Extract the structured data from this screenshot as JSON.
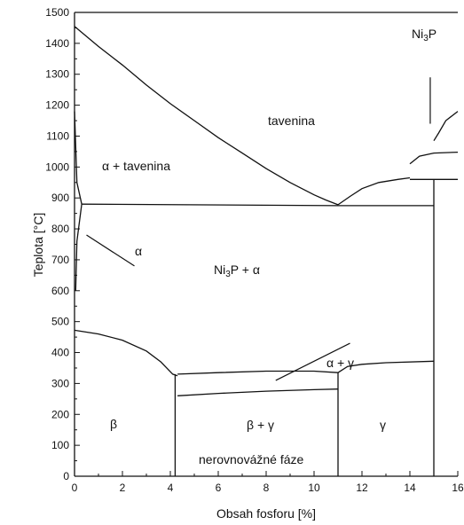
{
  "chart_data": {
    "type": "phase-diagram",
    "xlabel": "Obsah fosforu [%]",
    "ylabel": "Teplota [°C]",
    "xlim": [
      0,
      16
    ],
    "ylim": [
      0,
      1500
    ],
    "x_ticks": [
      "0",
      "2",
      "4",
      "6",
      "8",
      "10",
      "12",
      "14",
      "16"
    ],
    "y_ticks": [
      "0",
      "100",
      "200",
      "300",
      "400",
      "500",
      "600",
      "700",
      "800",
      "900",
      "1000",
      "1100",
      "1200",
      "1300",
      "1400",
      "1500"
    ],
    "regions": {
      "melt": "tavenina",
      "alpha_melt": "α + tavenina",
      "alpha": "α",
      "ni3p_alpha_pre": "Ni",
      "ni3p_alpha_sub": "3",
      "ni3p_alpha_post": "P + α",
      "alpha_gamma": "α + γ",
      "beta": "β",
      "beta_gamma": "β + γ",
      "gamma": "γ",
      "nonequilibrium": "nerovnovážné fáze",
      "ni3p_pre": "Ni",
      "ni3p_sub": "3",
      "ni3p_post": "P"
    },
    "curves": {
      "liquidus_left": [
        [
          0,
          1455
        ],
        [
          1,
          1390
        ],
        [
          2,
          1330
        ],
        [
          3,
          1265
        ],
        [
          4,
          1205
        ],
        [
          5,
          1150
        ],
        [
          6,
          1095
        ],
        [
          7,
          1045
        ],
        [
          8,
          995
        ],
        [
          9,
          950
        ],
        [
          10,
          910
        ],
        [
          10.5,
          893
        ],
        [
          11,
          878
        ]
      ],
      "liquidus_right": [
        [
          11,
          878
        ],
        [
          11.5,
          905
        ],
        [
          12,
          930
        ],
        [
          12.7,
          950
        ],
        [
          13.5,
          960
        ],
        [
          14,
          965
        ]
      ],
      "eutectic_alpha_ni3p": [
        [
          0.3,
          880
        ],
        [
          11,
          875
        ],
        [
          15,
          875
        ]
      ],
      "eutectic_ni3p_high": [
        [
          14,
          960
        ],
        [
          16,
          960
        ]
      ],
      "upper_line_1": [
        [
          14,
          1010
        ],
        [
          14.4,
          1035
        ],
        [
          15,
          1045
        ],
        [
          16,
          1048
        ]
      ],
      "upper_line_2": [
        [
          15,
          1085
        ],
        [
          15.2,
          1110
        ],
        [
          15.5,
          1150
        ],
        [
          16,
          1180
        ]
      ],
      "alpha_solidus_upper": [
        [
          0,
          1180
        ],
        [
          0.1,
          950
        ],
        [
          0.3,
          880
        ]
      ],
      "alpha_solvus_lower": [
        [
          0.3,
          880
        ],
        [
          0.1,
          760
        ],
        [
          0.05,
          600
        ]
      ],
      "beta_boundary": [
        [
          0,
          472
        ],
        [
          1,
          460
        ],
        [
          2,
          440
        ],
        [
          3,
          405
        ],
        [
          3.6,
          370
        ],
        [
          4.1,
          330
        ],
        [
          4.3,
          325
        ]
      ],
      "alpha_gamma_upper": [
        [
          4.3,
          330
        ],
        [
          6,
          335
        ],
        [
          8,
          340
        ],
        [
          10,
          340
        ],
        [
          11,
          335
        ]
      ],
      "beta_gamma_upper": [
        [
          4.3,
          260
        ],
        [
          6,
          268
        ],
        [
          8,
          275
        ],
        [
          10,
          280
        ],
        [
          11,
          282
        ]
      ],
      "gamma_upper": [
        [
          11,
          335
        ],
        [
          11.4,
          355
        ],
        [
          12,
          362
        ],
        [
          13,
          367
        ],
        [
          15,
          372
        ]
      ],
      "vertical_beta_left": [
        [
          4.2,
          0
        ],
        [
          4.2,
          330
        ]
      ],
      "vertical_gamma_left": [
        [
          11,
          0
        ],
        [
          11,
          335
        ]
      ],
      "vertical_ni3p": [
        [
          15,
          0
        ],
        [
          15,
          960
        ]
      ]
    },
    "pointers": {
      "alpha": [
        [
          0.5,
          780
        ],
        [
          2.5,
          680
        ]
      ],
      "alpha_gamma": [
        [
          8.4,
          310
        ],
        [
          11.5,
          430
        ]
      ],
      "ni3p": [
        [
          14.85,
          1290
        ],
        [
          14.85,
          1140
        ]
      ]
    },
    "grid": false,
    "legend": "none"
  }
}
